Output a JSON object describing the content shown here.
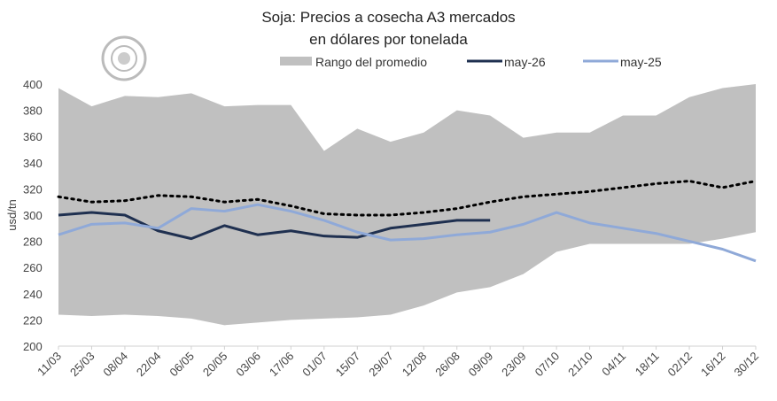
{
  "chart_data": {
    "type": "line",
    "title": "Soja: Precios a cosecha A3 mercados",
    "subtitle": "en dólares por tonelada",
    "ylabel": "usd/tn",
    "xlabel": "",
    "ylim": [
      200,
      400
    ],
    "yticks": [
      200,
      220,
      240,
      260,
      280,
      300,
      320,
      340,
      360,
      380,
      400
    ],
    "grid": false,
    "legend_position": "top",
    "categories": [
      "11/03",
      "25/03",
      "08/04",
      "22/04",
      "06/05",
      "20/05",
      "03/06",
      "17/06",
      "01/07",
      "15/07",
      "29/07",
      "12/08",
      "26/08",
      "09/09",
      "23/09",
      "07/10",
      "21/10",
      "04/11",
      "18/11",
      "02/12",
      "16/12",
      "30/12"
    ],
    "range": {
      "name": "Rango del promedio",
      "color": "#c0c0c0",
      "upper": [
        397,
        383,
        391,
        390,
        393,
        383,
        384,
        384,
        349,
        366,
        356,
        363,
        380,
        376,
        359,
        363,
        363,
        376,
        376,
        390,
        397,
        400
      ],
      "lower": [
        224,
        223,
        224,
        223,
        221,
        216,
        218,
        220,
        221,
        222,
        224,
        231,
        241,
        245,
        255,
        272,
        278,
        278,
        278,
        278,
        282,
        287
      ]
    },
    "series": [
      {
        "name": "may-26",
        "color": "#1f3050",
        "values": [
          300,
          302,
          300,
          288,
          282,
          292,
          285,
          288,
          284,
          283,
          290,
          293,
          296,
          296,
          null,
          null,
          null,
          null,
          null,
          null,
          null,
          null
        ]
      },
      {
        "name": "may-25",
        "color": "#8fa9d8",
        "values": [
          285,
          293,
          294,
          290,
          305,
          303,
          308,
          303,
          296,
          287,
          281,
          282,
          285,
          287,
          293,
          302,
          294,
          290,
          286,
          280,
          274,
          265
        ]
      },
      {
        "name": "",
        "color": "#000000",
        "style": "dotted",
        "values": [
          314,
          310,
          311,
          315,
          314,
          310,
          312,
          307,
          301,
          300,
          300,
          302,
          305,
          310,
          314,
          316,
          318,
          321,
          324,
          326,
          321,
          326
        ]
      }
    ]
  }
}
